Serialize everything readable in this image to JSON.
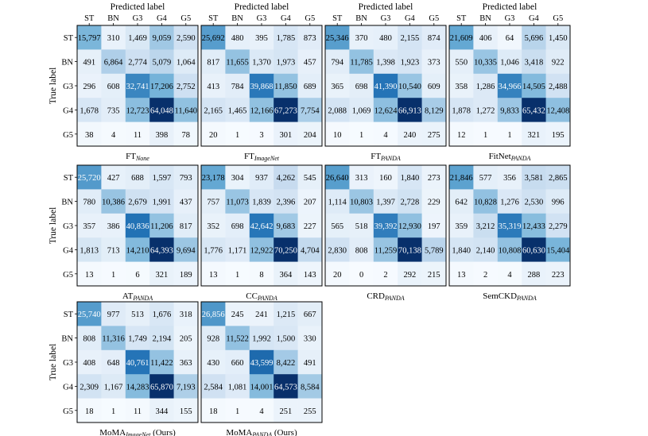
{
  "page": {
    "predicted_label": "Predicted label",
    "true_label": "True label",
    "classes": [
      "ST",
      "BN",
      "G3",
      "G4",
      "G5"
    ]
  },
  "colors": {
    "cmap_low": "#f7fbff",
    "cmap_mid1": "#c6dbef",
    "cmap_mid2": "#6baed6",
    "cmap_mid3": "#2171b5",
    "cmap_high": "#08306b",
    "border": "#000000"
  },
  "chart_data": [
    {
      "type": "heatmap",
      "title_base": "FT",
      "title_sub": "None",
      "title_suffix": "",
      "xlabel": "Predicted label",
      "ylabel": "True label",
      "categories": [
        "ST",
        "BN",
        "G3",
        "G4",
        "G5"
      ],
      "matrix": [
        [
          15797,
          310,
          1469,
          9059,
          2590
        ],
        [
          491,
          6864,
          2774,
          5079,
          1064
        ],
        [
          296,
          608,
          32741,
          17206,
          2752
        ],
        [
          1678,
          735,
          12723,
          64048,
          11640
        ],
        [
          38,
          4,
          11,
          398,
          78
        ]
      ]
    },
    {
      "type": "heatmap",
      "title_base": "FT",
      "title_sub": "ImageNet",
      "title_suffix": "",
      "xlabel": "Predicted label",
      "ylabel": "True label",
      "categories": [
        "ST",
        "BN",
        "G3",
        "G4",
        "G5"
      ],
      "matrix": [
        [
          25692,
          480,
          395,
          1785,
          873
        ],
        [
          817,
          11655,
          1370,
          1973,
          457
        ],
        [
          413,
          784,
          39868,
          11850,
          689
        ],
        [
          2165,
          1465,
          12166,
          67273,
          7754
        ],
        [
          20,
          1,
          3,
          301,
          204
        ]
      ]
    },
    {
      "type": "heatmap",
      "title_base": "FT",
      "title_sub": "PANDA",
      "title_suffix": "",
      "xlabel": "Predicted label",
      "ylabel": "True label",
      "categories": [
        "ST",
        "BN",
        "G3",
        "G4",
        "G5"
      ],
      "matrix": [
        [
          25346,
          370,
          480,
          2155,
          874
        ],
        [
          794,
          11785,
          1398,
          1923,
          373
        ],
        [
          365,
          698,
          41390,
          10540,
          609
        ],
        [
          2088,
          1069,
          12624,
          66913,
          8129
        ],
        [
          10,
          1,
          4,
          240,
          275
        ]
      ]
    },
    {
      "type": "heatmap",
      "title_base": "FitNet",
      "title_sub": "PANDA",
      "title_suffix": "",
      "xlabel": "Predicted label",
      "ylabel": "True label",
      "categories": [
        "ST",
        "BN",
        "G3",
        "G4",
        "G5"
      ],
      "matrix": [
        [
          21609,
          406,
          64,
          5696,
          1450
        ],
        [
          550,
          10335,
          1046,
          3418,
          922
        ],
        [
          358,
          1286,
          34966,
          14505,
          2488
        ],
        [
          1878,
          1272,
          9833,
          65432,
          12408
        ],
        [
          12,
          1,
          1,
          321,
          195
        ]
      ]
    },
    {
      "type": "heatmap",
      "title_base": "AT",
      "title_sub": "PANDA",
      "title_suffix": "",
      "xlabel": "Predicted label",
      "ylabel": "True label",
      "categories": [
        "ST",
        "BN",
        "G3",
        "G4",
        "G5"
      ],
      "matrix": [
        [
          25720,
          427,
          688,
          1597,
          793
        ],
        [
          780,
          10386,
          2679,
          1991,
          437
        ],
        [
          357,
          386,
          40836,
          11206,
          817
        ],
        [
          1813,
          713,
          14210,
          64393,
          9694
        ],
        [
          13,
          1,
          6,
          321,
          189
        ]
      ]
    },
    {
      "type": "heatmap",
      "title_base": "CC",
      "title_sub": "PANDA",
      "title_suffix": "",
      "xlabel": "Predicted label",
      "ylabel": "True label",
      "categories": [
        "ST",
        "BN",
        "G3",
        "G4",
        "G5"
      ],
      "matrix": [
        [
          23178,
          304,
          937,
          4262,
          545
        ],
        [
          757,
          11073,
          1839,
          2396,
          207
        ],
        [
          352,
          698,
          42642,
          9683,
          227
        ],
        [
          1776,
          1171,
          12922,
          70250,
          4704
        ],
        [
          13,
          1,
          8,
          364,
          143
        ]
      ]
    },
    {
      "type": "heatmap",
      "title_base": "CRD",
      "title_sub": "PANDA",
      "title_suffix": "",
      "xlabel": "Predicted label",
      "ylabel": "True label",
      "categories": [
        "ST",
        "BN",
        "G3",
        "G4",
        "G5"
      ],
      "matrix": [
        [
          26640,
          313,
          160,
          1840,
          273
        ],
        [
          1114,
          10803,
          1397,
          2728,
          229
        ],
        [
          565,
          518,
          39392,
          12930,
          197
        ],
        [
          2830,
          808,
          11259,
          70138,
          5789
        ],
        [
          20,
          0,
          2,
          292,
          215
        ]
      ]
    },
    {
      "type": "heatmap",
      "title_base": "SemCKD",
      "title_sub": "PANDA",
      "title_suffix": "",
      "xlabel": "Predicted label",
      "ylabel": "True label",
      "categories": [
        "ST",
        "BN",
        "G3",
        "G4",
        "G5"
      ],
      "matrix": [
        [
          21846,
          577,
          356,
          3581,
          2865
        ],
        [
          642,
          10828,
          1276,
          2530,
          996
        ],
        [
          359,
          3212,
          35319,
          12433,
          2279
        ],
        [
          1840,
          2140,
          10808,
          60630,
          15404
        ],
        [
          13,
          2,
          4,
          288,
          223
        ]
      ]
    },
    {
      "type": "heatmap",
      "title_base": "MoMA",
      "title_sub": "ImageNet",
      "title_suffix": " (Ours)",
      "xlabel": "Predicted label",
      "ylabel": "True label",
      "categories": [
        "ST",
        "BN",
        "G3",
        "G4",
        "G5"
      ],
      "matrix": [
        [
          25740,
          977,
          513,
          1676,
          318
        ],
        [
          808,
          11316,
          1749,
          2194,
          205
        ],
        [
          408,
          648,
          40761,
          11422,
          363
        ],
        [
          2309,
          1167,
          14283,
          65870,
          7193
        ],
        [
          18,
          1,
          11,
          344,
          155
        ]
      ]
    },
    {
      "type": "heatmap",
      "title_base": "MoMA",
      "title_sub": "PANDA",
      "title_suffix": " (Ours)",
      "xlabel": "Predicted label",
      "ylabel": "True label",
      "categories": [
        "ST",
        "BN",
        "G3",
        "G4",
        "G5"
      ],
      "matrix": [
        [
          26856,
          245,
          241,
          1215,
          667
        ],
        [
          928,
          11522,
          1992,
          1500,
          330
        ],
        [
          430,
          660,
          43599,
          8422,
          491
        ],
        [
          2584,
          1081,
          14001,
          64573,
          8584
        ],
        [
          18,
          1,
          4,
          251,
          255
        ]
      ]
    }
  ]
}
